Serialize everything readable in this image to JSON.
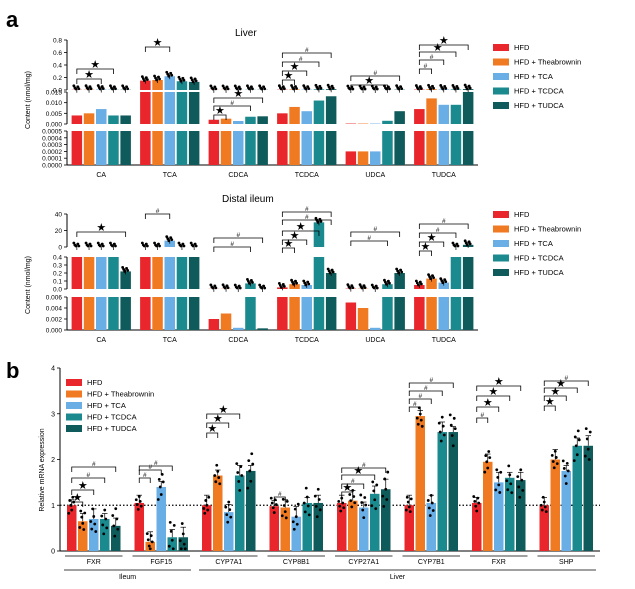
{
  "panel_labels": {
    "a": "a",
    "b": "b"
  },
  "colors": {
    "HFD": "#e8262b",
    "HFD + Theabrownin": "#f07a22",
    "HFD + TCA": "#6aaee6",
    "HFD + TCDCA": "#1a8a8f",
    "HFD + TUDCA": "#0f5a5a"
  },
  "legend": [
    "HFD",
    "HFD + Theabrownin",
    "HFD + TCA",
    "HFD + TCDCA",
    "HFD + TUDCA"
  ],
  "chart_data": [
    {
      "type": "bar",
      "title": "Liver",
      "ylabel": "Content (nmol/mg)",
      "broken_axis": true,
      "yticks_top": [
        "0.8",
        "0.6",
        "0.4",
        "0.2",
        "0.0"
      ],
      "yticks_mid": [
        "0.015",
        "0.010",
        "0.005",
        "0.000"
      ],
      "yticks_bot": [
        "0.0005",
        "0.0004",
        "0.0003",
        "0.0002",
        "0.0001",
        "0.0000"
      ],
      "categories": [
        "CA",
        "TCA",
        "CDCA",
        "TCDCA",
        "UDCA",
        "TUDCA"
      ],
      "series": [
        {
          "name": "HFD",
          "values": [
            0.004,
            0.15,
            0.002,
            0.005,
            0.0002,
            0.007
          ]
        },
        {
          "name": "HFD + Theabrownin",
          "values": [
            0.005,
            0.16,
            0.0025,
            0.008,
            0.0002,
            0.012
          ]
        },
        {
          "name": "HFD + TCA",
          "values": [
            0.007,
            0.22,
            0.0014,
            0.006,
            0.0002,
            0.009
          ]
        },
        {
          "name": "HFD + TCDCA",
          "values": [
            0.004,
            0.14,
            0.0034,
            0.011,
            0.0015,
            0.009
          ]
        },
        {
          "name": "HFD + TUDCA",
          "values": [
            0.004,
            0.13,
            0.0036,
            0.013,
            0.006,
            0.015
          ]
        }
      ]
    },
    {
      "type": "bar",
      "title": "Distal ileum",
      "ylabel": "Content (nmol/mg)",
      "broken_axis": true,
      "yticks_top": [
        "40",
        "20",
        "0"
      ],
      "yticks_mid": [
        "0.4",
        "0.3",
        "0.2",
        "0.1",
        "0.0"
      ],
      "yticks_bot": [
        "0.006",
        "0.004",
        "0.002",
        "0.000"
      ],
      "categories": [
        "CA",
        "TCA",
        "CDCA",
        "TCDCA",
        "UDCA",
        "TUDCA"
      ],
      "series": [
        {
          "name": "HFD",
          "values": [
            0.4,
            0.4,
            0.002,
            0.02,
            0.005,
            0.05
          ]
        },
        {
          "name": "HFD + Theabrownin",
          "values": [
            0.4,
            0.4,
            0.003,
            0.06,
            0.004,
            0.13
          ]
        },
        {
          "name": "HFD + TCA",
          "values": [
            0.4,
            8,
            0.0004,
            0.05,
            0.0004,
            0.08
          ]
        },
        {
          "name": "HFD + TCDCA",
          "values": [
            0.4,
            0.4,
            0.07,
            30,
            0.06,
            0.4
          ]
        },
        {
          "name": "HFD + TUDCA",
          "values": [
            0.22,
            0.4,
            0.0003,
            0.2,
            0.2,
            3
          ]
        }
      ]
    },
    {
      "type": "bar",
      "ylabel": "Relative mRNA expression",
      "ylim": [
        0,
        4
      ],
      "yticks": [
        "0",
        "1",
        "2",
        "3",
        "4"
      ],
      "categories": [
        "FXR",
        "FGF15",
        "CYP7A1",
        "CYP8B1",
        "CYP27A1",
        "CYP7B1",
        "FXR",
        "SHP"
      ],
      "groups": [
        {
          "label": "Ileum"
        },
        {
          "label": "Liver"
        }
      ],
      "series": [
        {
          "name": "HFD",
          "values": [
            1.0,
            1.05,
            1.0,
            0.98,
            1.05,
            1.0,
            1.05,
            1.0
          ]
        },
        {
          "name": "HFD + Theabrownin",
          "values": [
            0.65,
            0.2,
            1.65,
            0.95,
            1.1,
            2.95,
            1.95,
            2.0
          ]
        },
        {
          "name": "HFD + TCA",
          "values": [
            0.7,
            1.4,
            0.85,
            0.75,
            0.95,
            1.05,
            1.5,
            1.75
          ]
        },
        {
          "name": "HFD + TCDCA",
          "values": [
            0.7,
            0.3,
            1.65,
            1.05,
            1.25,
            2.6,
            1.6,
            2.3
          ]
        },
        {
          "name": "HFD + TUDCA",
          "values": [
            0.55,
            0.3,
            1.75,
            1.05,
            1.35,
            2.6,
            1.55,
            2.3
          ]
        }
      ]
    }
  ]
}
